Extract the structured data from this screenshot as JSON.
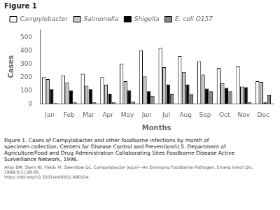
{
  "chart_data": {
    "type": "bar",
    "title": "Figure 1",
    "xlabel": "Months",
    "ylabel": "Cases",
    "categories": [
      "Jan",
      "Feb",
      "Mar",
      "Apr",
      "May",
      "Jun",
      "Jul",
      "Aug",
      "Sep",
      "Oct",
      "Nov",
      "Dec"
    ],
    "series": [
      {
        "name": "Campylobacter",
        "color": "white",
        "values": [
          200,
          215,
          225,
          200,
          300,
          400,
          420,
          360,
          320,
          270,
          280,
          170
        ]
      },
      {
        "name": "Salmonella",
        "color": "#c8c8c8",
        "values": [
          185,
          160,
          135,
          145,
          170,
          205,
          275,
          240,
          220,
          155,
          130,
          165
        ]
      },
      {
        "name": "Shigella",
        "color": "black",
        "values": [
          110,
          100,
          110,
          75,
          100,
          95,
          145,
          145,
          115,
          120,
          125,
          10
        ]
      },
      {
        "name": "E. coli O157",
        "color": "#888888",
        "values": [
          5,
          10,
          10,
          10,
          15,
          60,
          75,
          70,
          95,
          95,
          10,
          65
        ]
      }
    ],
    "ylim": [
      0,
      560
    ],
    "yticks": [
      0,
      100,
      200,
      300,
      400,
      500
    ],
    "grid": false,
    "legend": "upper left",
    "caption": [
      "Figure 1. Cases of Campylobacter and other foodborne infections by month of",
      "specimen collection; Centers for Disease Control and Prevention/U.S. Department of",
      "Agriculture/Food and Drug Administration Collaborating Sites Foodborne Disease Active",
      "Surveillance Network, 1996."
    ],
    "references": [
      "Allos BM, Stern NJ, Fields PI, Swerdlow DL. Campylobacter jejuni—An Emerging Foodborne Pathogen. Emerg Infect Dis. 1999;5(1):28-35.",
      "https://doi.org/10.3201/eid0501.990104"
    ]
  }
}
